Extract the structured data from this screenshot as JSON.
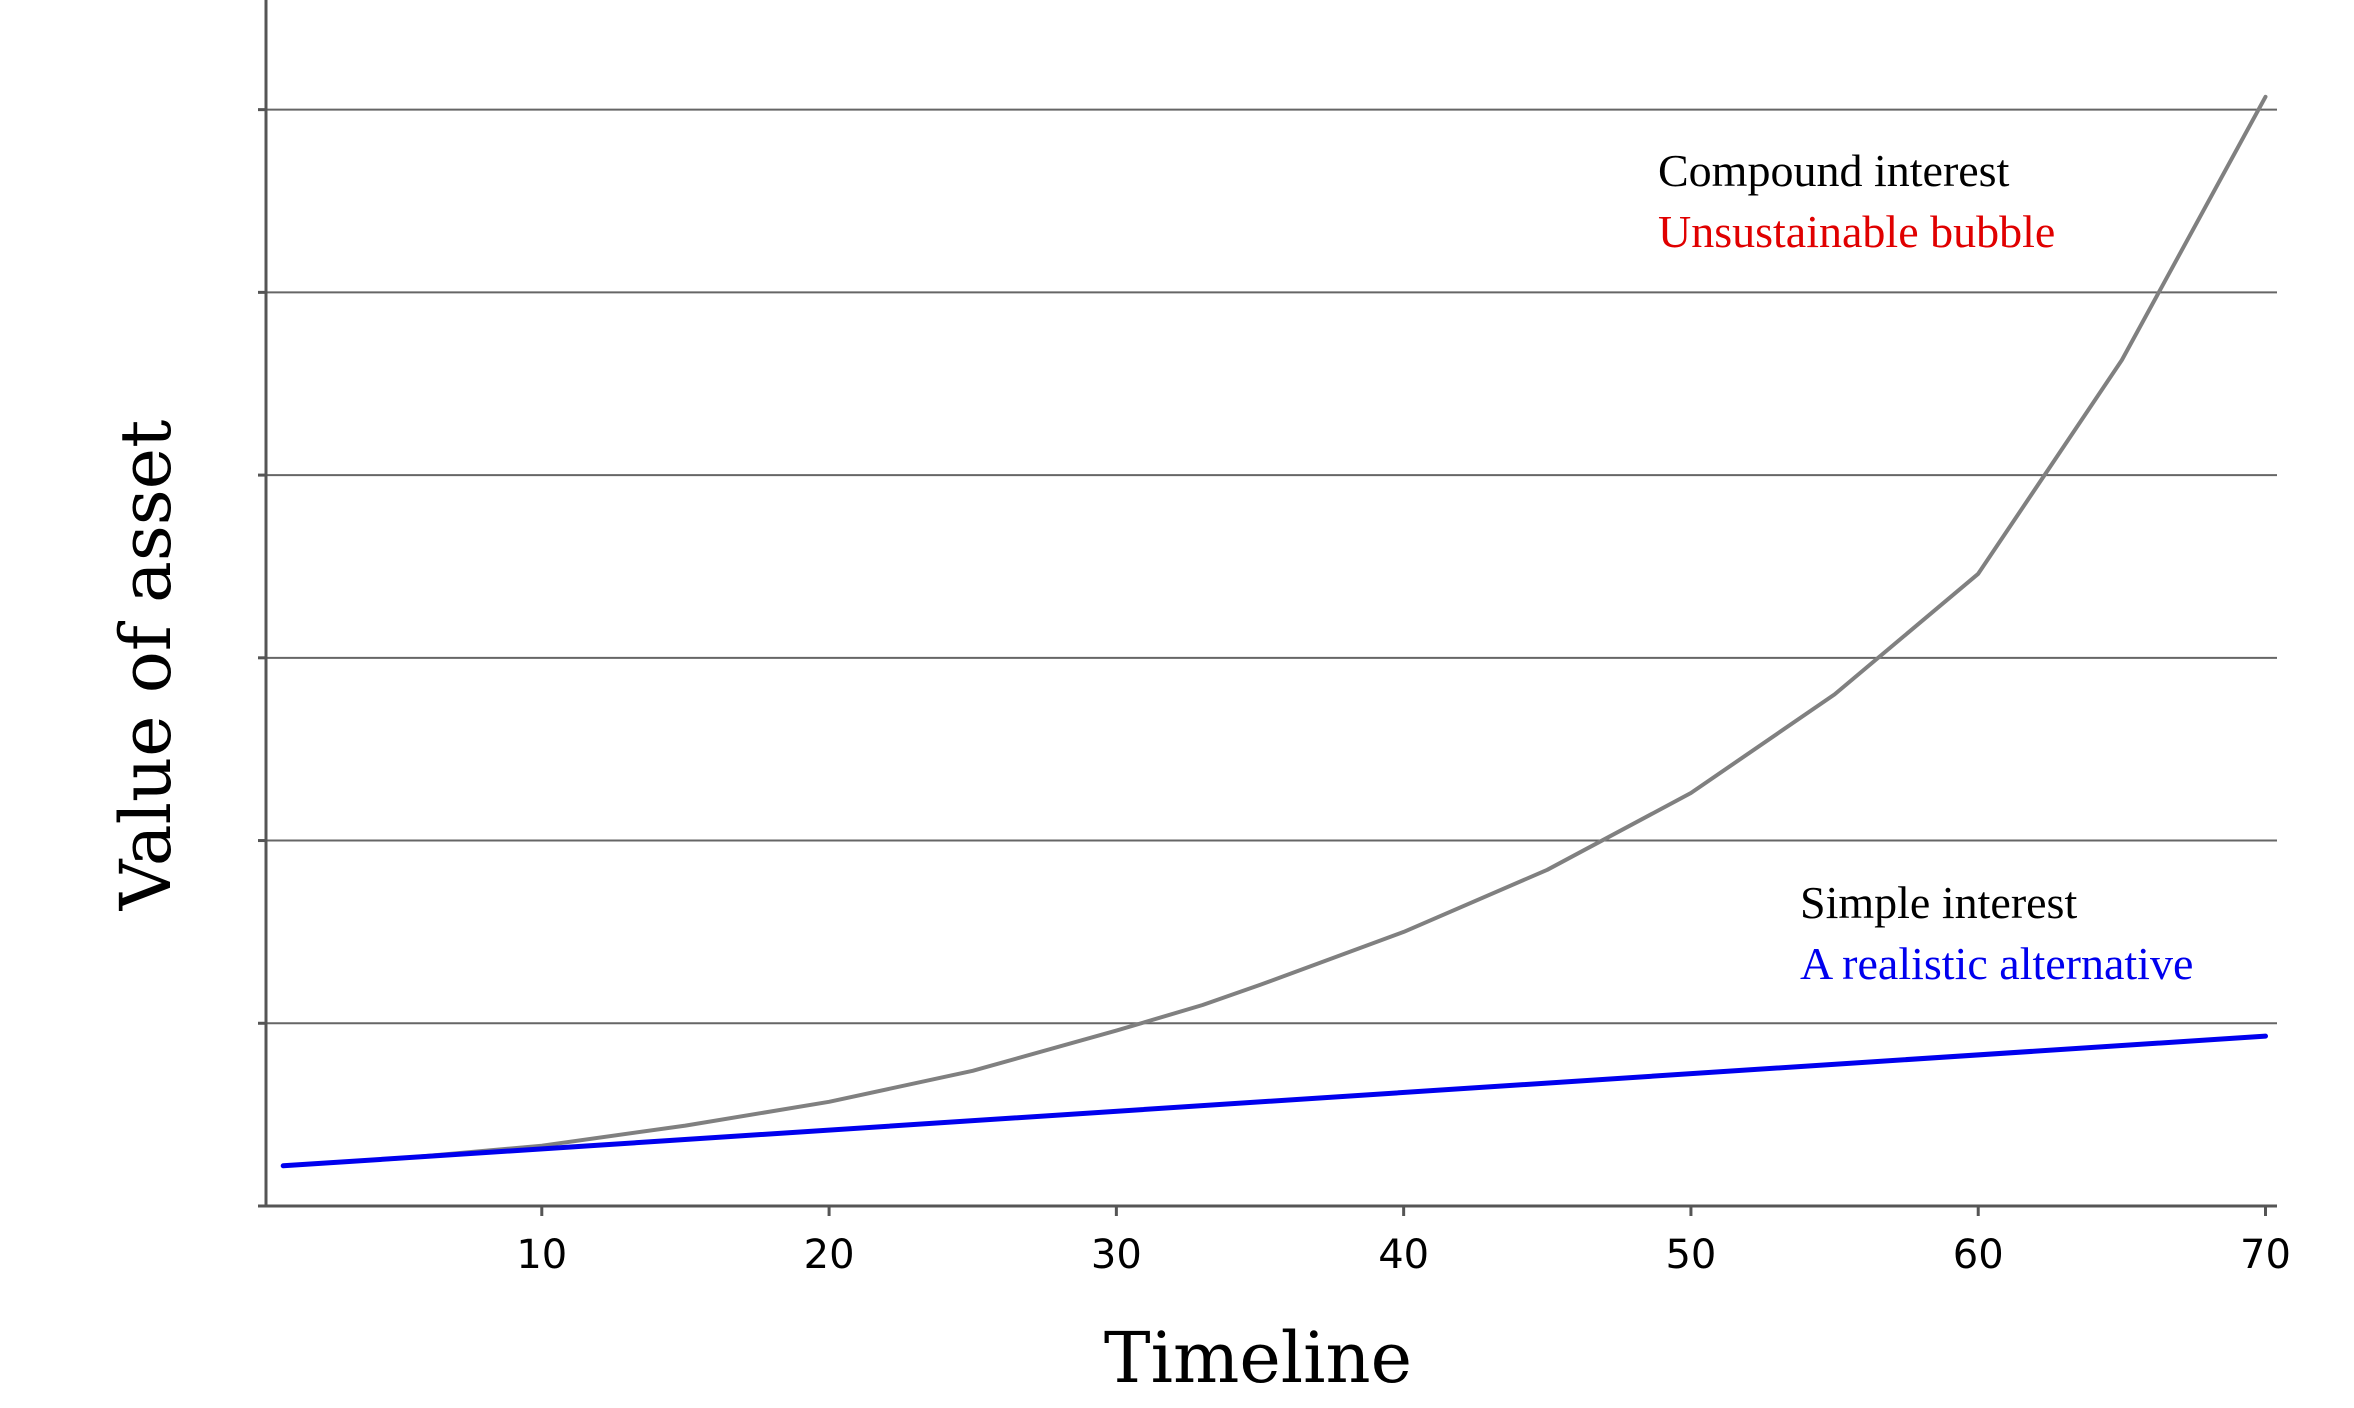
{
  "chart_data": {
    "type": "line",
    "title": "",
    "xlabel": "Timeline",
    "ylabel": "Value of asset",
    "xlim": [
      0.4,
      70.4
    ],
    "ylim": [
      0,
      6.6
    ],
    "x_ticks": [
      10,
      20,
      30,
      40,
      50,
      60,
      70
    ],
    "y_gridlines": [
      1,
      2,
      3,
      4,
      5,
      6
    ],
    "grid": "horizontal",
    "legend": "none",
    "series": [
      {
        "key": "compound",
        "color": "#808080",
        "x": [
          1,
          5,
          10,
          15,
          20,
          25,
          30,
          33,
          35,
          40,
          45,
          50,
          55,
          60,
          65,
          70
        ],
        "y": [
          0.22,
          0.26,
          0.33,
          0.44,
          0.57,
          0.74,
          0.96,
          1.1,
          1.21,
          1.5,
          1.84,
          2.26,
          2.8,
          3.46,
          4.63,
          6.07
        ]
      },
      {
        "key": "simple",
        "color": "#0000ee",
        "x": [
          1,
          70
        ],
        "y": [
          0.22,
          0.93
        ]
      }
    ],
    "annotations": [
      {
        "id": "compound",
        "lines": [
          {
            "text": "Compound interest",
            "color": "#000000"
          },
          {
            "text": "Unsustainable bubble",
            "color": "#e00000"
          }
        ]
      },
      {
        "id": "simple",
        "lines": [
          {
            "text": "Simple interest",
            "color": "#000000"
          },
          {
            "text": "A realistic alternative",
            "color": "#0000ee"
          }
        ]
      }
    ]
  }
}
